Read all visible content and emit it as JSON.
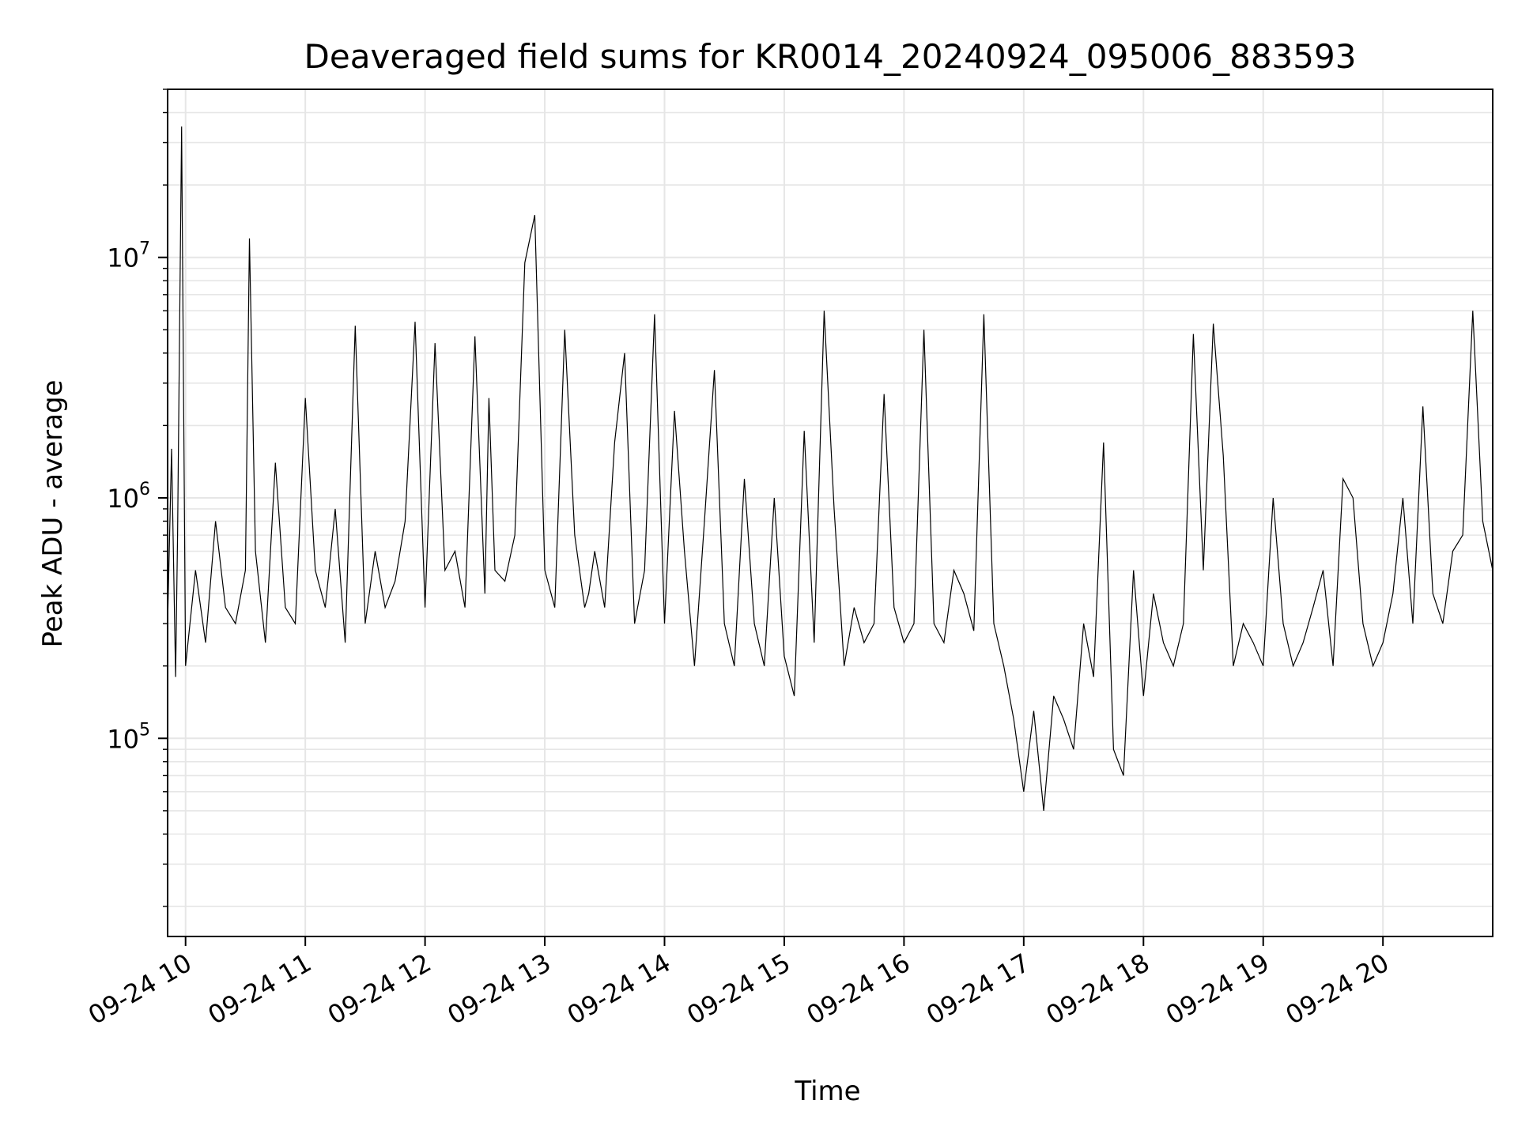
{
  "chart_data": {
    "type": "line",
    "title": "Deaveraged field sums for KR0014_20240924_095006_883593",
    "xlabel": "Time",
    "ylabel": "Peak ADU - average",
    "yscale": "log",
    "xlim": [
      "09-24 09:51",
      "09-24 20:55"
    ],
    "ylim": [
      15000,
      50000000
    ],
    "grid": true,
    "grid_minor": true,
    "legend": "none",
    "line_color": "#000000",
    "x_ticks": [
      "09-24 10",
      "09-24 11",
      "09-24 12",
      "09-24 13",
      "09-24 14",
      "09-24 15",
      "09-24 16",
      "09-24 17",
      "09-24 18",
      "09-24 19",
      "09-24 20"
    ],
    "y_ticks": [
      {
        "value": 100000,
        "base": "10",
        "exp": "5"
      },
      {
        "value": 1000000,
        "base": "10",
        "exp": "6"
      },
      {
        "value": 10000000,
        "base": "10",
        "exp": "7"
      }
    ],
    "series": [
      {
        "x": [
          "09:51",
          "09:53",
          "09:55",
          "09:56",
          "09:57",
          "09:58",
          "10:00",
          "10:05",
          "10:10",
          "10:15",
          "10:20",
          "10:25",
          "10:30",
          "10:32",
          "10:35",
          "10:40",
          "10:45",
          "10:50",
          "10:55",
          "11:00",
          "11:05",
          "11:10",
          "11:15",
          "11:20",
          "11:25",
          "11:30",
          "11:35",
          "11:40",
          "11:45",
          "11:50",
          "11:55",
          "12:00",
          "12:05",
          "12:10",
          "12:15",
          "12:20",
          "12:25",
          "12:30",
          "12:32",
          "12:35",
          "12:40",
          "12:45",
          "12:50",
          "12:55",
          "13:00",
          "13:05",
          "13:10",
          "13:15",
          "13:20",
          "13:22",
          "13:25",
          "13:30",
          "13:35",
          "13:40",
          "13:45",
          "13:50",
          "13:55",
          "14:00",
          "14:05",
          "14:10",
          "14:15",
          "14:20",
          "14:25",
          "14:30",
          "14:35",
          "14:40",
          "14:45",
          "14:50",
          "14:55",
          "15:00",
          "15:05",
          "15:10",
          "15:15",
          "15:20",
          "15:25",
          "15:30",
          "15:35",
          "15:40",
          "15:45",
          "15:50",
          "15:55",
          "16:00",
          "16:05",
          "16:10",
          "16:15",
          "16:20",
          "16:25",
          "16:30",
          "16:35",
          "16:40",
          "16:45",
          "16:50",
          "16:55",
          "17:00",
          "17:05",
          "17:10",
          "17:15",
          "17:20",
          "17:25",
          "17:30",
          "17:35",
          "17:40",
          "17:45",
          "17:50",
          "17:55",
          "18:00",
          "18:05",
          "18:10",
          "18:15",
          "18:20",
          "18:25",
          "18:30",
          "18:35",
          "18:40",
          "18:45",
          "18:50",
          "18:55",
          "19:00",
          "19:05",
          "19:10",
          "19:15",
          "19:20",
          "19:25",
          "19:30",
          "19:35",
          "19:40",
          "19:45",
          "19:50",
          "19:55",
          "20:00",
          "20:05",
          "20:10",
          "20:15",
          "20:20",
          "20:25",
          "20:30",
          "20:35",
          "20:40",
          "20:45",
          "20:50",
          "20:55"
        ],
        "y": [
          300000,
          1600000,
          180000,
          700000,
          4800000,
          35000000,
          200000,
          500000,
          250000,
          800000,
          350000,
          300000,
          500000,
          12000000,
          600000,
          250000,
          1400000,
          350000,
          300000,
          2600000,
          500000,
          350000,
          900000,
          250000,
          5200000,
          300000,
          600000,
          350000,
          450000,
          800000,
          5400000,
          350000,
          4400000,
          500000,
          600000,
          350000,
          4700000,
          400000,
          2600000,
          500000,
          450000,
          700000,
          9500000,
          15000000,
          500000,
          350000,
          5000000,
          700000,
          350000,
          400000,
          600000,
          350000,
          1700000,
          4000000,
          300000,
          500000,
          5800000,
          300000,
          2300000,
          600000,
          200000,
          800000,
          3400000,
          300000,
          200000,
          1200000,
          300000,
          200000,
          1000000,
          220000,
          150000,
          1900000,
          250000,
          6000000,
          900000,
          200000,
          350000,
          250000,
          300000,
          2700000,
          350000,
          250000,
          300000,
          5000000,
          300000,
          250000,
          500000,
          400000,
          280000,
          5800000,
          300000,
          200000,
          120000,
          60000,
          130000,
          50000,
          150000,
          120000,
          90000,
          300000,
          180000,
          1700000,
          90000,
          70000,
          500000,
          150000,
          400000,
          250000,
          200000,
          300000,
          4800000,
          500000,
          5300000,
          1500000,
          200000,
          300000,
          250000,
          200000,
          1000000,
          300000,
          200000,
          250000,
          350000,
          500000,
          200000,
          1200000,
          1000000,
          300000,
          200000,
          250000,
          400000,
          1000000,
          300000,
          2400000,
          400000,
          300000,
          600000,
          700000,
          6000000,
          800000,
          500000
        ]
      }
    ]
  }
}
